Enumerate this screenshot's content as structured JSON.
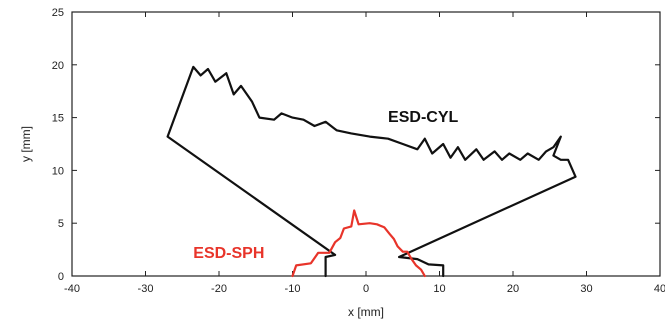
{
  "chart_data": {
    "type": "line",
    "title": "",
    "xlabel": "x [mm]",
    "ylabel": "y [mm]",
    "xlim": [
      -40,
      40
    ],
    "ylim": [
      0,
      25
    ],
    "xticks": [
      -40,
      -30,
      -20,
      -10,
      0,
      10,
      20,
      30,
      40
    ],
    "yticks": [
      0,
      5,
      10,
      15,
      20,
      25
    ],
    "grid": false,
    "legend": "none",
    "series": [
      {
        "name": "ESD-CYL",
        "color": "#111111",
        "points": [
          [
            -5.5,
            0
          ],
          [
            -5.5,
            1.8
          ],
          [
            -4.2,
            2.0
          ],
          [
            -27,
            13.2
          ],
          [
            -23.5,
            19.8
          ],
          [
            -22.5,
            19.0
          ],
          [
            -21.5,
            19.6
          ],
          [
            -20.5,
            18.4
          ],
          [
            -19,
            19.2
          ],
          [
            -18,
            17.2
          ],
          [
            -17,
            18.0
          ],
          [
            -15.5,
            16.5
          ],
          [
            -14.5,
            15.0
          ],
          [
            -12.5,
            14.8
          ],
          [
            -11.5,
            15.4
          ],
          [
            -10,
            15.0
          ],
          [
            -8.5,
            14.8
          ],
          [
            -7.0,
            14.2
          ],
          [
            -5.5,
            14.6
          ],
          [
            -4.0,
            13.8
          ],
          [
            -2.0,
            13.5
          ],
          [
            0.5,
            13.2
          ],
          [
            3.0,
            13.0
          ],
          [
            5.0,
            12.5
          ],
          [
            7.0,
            12.0
          ],
          [
            8.0,
            13.0
          ],
          [
            9.0,
            11.6
          ],
          [
            10.5,
            12.5
          ],
          [
            11.5,
            11.2
          ],
          [
            12.5,
            12.2
          ],
          [
            13.5,
            11.0
          ],
          [
            15.0,
            12.0
          ],
          [
            16.0,
            11.0
          ],
          [
            17.5,
            11.8
          ],
          [
            18.5,
            11.0
          ],
          [
            19.5,
            11.6
          ],
          [
            21.0,
            11.0
          ],
          [
            22.0,
            11.6
          ],
          [
            23.5,
            11.0
          ],
          [
            24.5,
            11.8
          ],
          [
            25.5,
            12.2
          ],
          [
            26.5,
            13.2
          ],
          [
            25.5,
            11.4
          ],
          [
            26.5,
            11.0
          ],
          [
            27.5,
            11.0
          ],
          [
            28.5,
            9.4
          ],
          [
            4.5,
            1.8
          ],
          [
            7.0,
            1.6
          ],
          [
            8.5,
            1.1
          ],
          [
            10.5,
            1.0
          ],
          [
            10.5,
            0
          ]
        ]
      },
      {
        "name": "ESD-SPH",
        "color": "#e8342a",
        "points": [
          [
            -10,
            0
          ],
          [
            -9.5,
            1.0
          ],
          [
            -7.5,
            1.2
          ],
          [
            -6.5,
            2.2
          ],
          [
            -5.0,
            2.2
          ],
          [
            -4.2,
            3.2
          ],
          [
            -3.5,
            3.6
          ],
          [
            -3.0,
            4.5
          ],
          [
            -2.0,
            4.7
          ],
          [
            -1.6,
            6.2
          ],
          [
            -1.0,
            4.9
          ],
          [
            0.5,
            5.0
          ],
          [
            1.5,
            4.9
          ],
          [
            2.5,
            4.6
          ],
          [
            3.2,
            4.0
          ],
          [
            3.8,
            3.5
          ],
          [
            4.3,
            2.8
          ],
          [
            5.0,
            2.3
          ],
          [
            5.6,
            2.3
          ],
          [
            6.2,
            1.6
          ],
          [
            6.8,
            1.0
          ],
          [
            7.5,
            0.6
          ],
          [
            8.0,
            0
          ]
        ]
      }
    ],
    "annotations": [
      {
        "text": "ESD-CYL",
        "x": 3.0,
        "y": 14.6,
        "color": "#111111"
      },
      {
        "text": "ESD-SPH",
        "x": -23.5,
        "y": 1.7,
        "color": "#e8342a"
      }
    ]
  }
}
